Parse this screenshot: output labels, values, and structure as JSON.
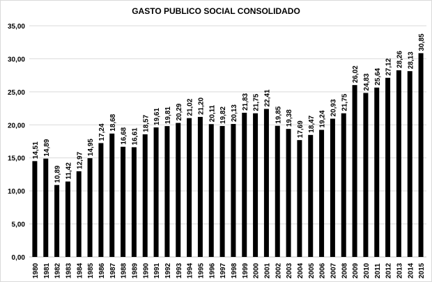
{
  "chart_data": {
    "type": "bar",
    "title": "GASTO PUBLICO SOCIAL CONSOLIDADO",
    "xlabel": "",
    "ylabel": "",
    "ylim": [
      0,
      35
    ],
    "yticks": [
      "0,00",
      "5,00",
      "10,00",
      "15,00",
      "20,00",
      "25,00",
      "30,00",
      "35,00"
    ],
    "grid": true,
    "bar_color": "#000000",
    "categories": [
      "1980",
      "1981",
      "1982",
      "1983",
      "1984",
      "1985",
      "1986",
      "1987",
      "1988",
      "1989",
      "1990",
      "1991",
      "1992",
      "1993",
      "1994",
      "1995",
      "1996",
      "1997",
      "1998",
      "1999",
      "2000",
      "2001",
      "2002",
      "2003",
      "2004",
      "2005",
      "2006",
      "2007",
      "2008",
      "2009",
      "2010",
      "2011",
      "2012",
      "2013",
      "2014",
      "2015"
    ],
    "values": [
      14.51,
      14.89,
      10.89,
      11.42,
      12.97,
      14.95,
      17.24,
      18.68,
      16.68,
      16.61,
      18.57,
      19.61,
      19.81,
      20.29,
      21.02,
      21.2,
      20.11,
      19.82,
      20.13,
      21.83,
      21.75,
      22.41,
      19.85,
      19.38,
      17.69,
      18.47,
      19.24,
      20.93,
      21.75,
      26.02,
      24.83,
      25.64,
      27.12,
      28.26,
      28.13,
      30.85
    ],
    "labels": [
      "14,51",
      "14,89",
      "10,89",
      "11,42",
      "12,97",
      "14,95",
      "17,24",
      "18,68",
      "16,68",
      "16,61",
      "18,57",
      "19,61",
      "19,81",
      "20,29",
      "21,02",
      "21,20",
      "20,11",
      "19,82",
      "20,13",
      "21,83",
      "21,75",
      "22,41",
      "19,85",
      "19,38",
      "17,69",
      "18,47",
      "19,24",
      "20,93",
      "21,75",
      "26,02",
      "24,83",
      "25,64",
      "27,12",
      "28,26",
      "28,13",
      "30,85"
    ]
  }
}
